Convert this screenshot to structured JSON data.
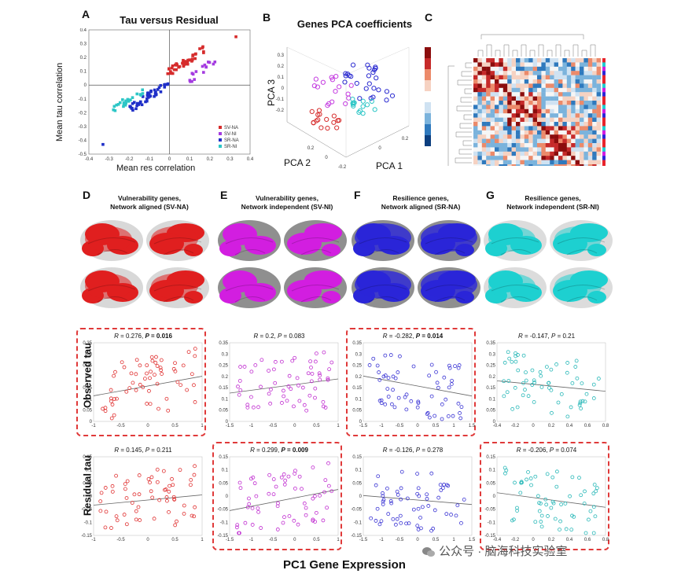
{
  "panelA": {
    "letter": "A",
    "title": "Tau versus Residual",
    "xlabel": "Mean res correlation",
    "ylabel": "Mean tau correlation",
    "xticks": [
      "-0.4",
      "-0.3",
      "-0.2",
      "-0.1",
      "0",
      "0.1",
      "0.2",
      "0.3",
      "0.4"
    ],
    "yticks": [
      "0.4",
      "0.3",
      "0.2",
      "0.1",
      "0",
      "-0.1",
      "-0.2",
      "-0.3",
      "-0.4",
      "-0.5"
    ],
    "legend": [
      {
        "label": "SV-NA",
        "color": "#d62c2c"
      },
      {
        "label": "SV-NI",
        "color": "#a43be0"
      },
      {
        "label": "SR-NA",
        "color": "#1f2fc8"
      },
      {
        "label": "SR-NI",
        "color": "#2cc6c6"
      }
    ]
  },
  "panelB": {
    "letter": "B",
    "title": "Genes PCA coefficients",
    "xlabel": "PCA 1",
    "ylabel": "PCA 2",
    "zlabel": "PCA 3",
    "zticks": [
      "0.3",
      "0.2",
      "0.1",
      "0",
      "-0.1",
      "-0.2"
    ],
    "yticks": [
      "0.2",
      "0",
      "-0.2"
    ],
    "xticks": [
      "0",
      "0.2"
    ]
  },
  "panelC": {
    "letter": "C"
  },
  "brains": [
    {
      "letter": "D",
      "title1": "Vulnerability genes,",
      "title2": "Network aligned (SV-NA)",
      "color": "#e01f1f"
    },
    {
      "letter": "E",
      "title1": "Vulnerability genes,",
      "title2": "Network independent (SV-NI)",
      "color": "#d21ee0"
    },
    {
      "letter": "F",
      "title1": "Resilience genes,",
      "title2": "Network aligned (SR-NA)",
      "color": "#2a26d8"
    },
    {
      "letter": "G",
      "title1": "Resilience genes,",
      "title2": "Network independent (SR-NI)",
      "color": "#1ed0d0"
    }
  ],
  "rows": {
    "observed": "Observed tau",
    "residual": "Residual tau",
    "xlabel": "PC1 Gene Expression"
  },
  "scatter": [
    {
      "R": "0.276",
      "P": "0.016",
      "bold": true,
      "highlight": true,
      "color": "#e03030",
      "xticks": [
        "-1",
        "-0.5",
        "0",
        "0.5",
        "1"
      ],
      "yticks": [
        "0.35",
        "0.3",
        "0.25",
        "0.2",
        "0.15",
        "0.1",
        "0.05",
        "0"
      ]
    },
    {
      "R": "0.2",
      "P": "0.083",
      "bold": false,
      "highlight": false,
      "color": "#c02cd0",
      "xticks": [
        "-1.5",
        "-1",
        "-0.5",
        "0",
        "0.5",
        "1"
      ],
      "yticks": [
        "0.35",
        "0.3",
        "0.25",
        "0.2",
        "0.15",
        "0.1",
        "0.05",
        "0"
      ]
    },
    {
      "R": "-0.282",
      "P": "0.014",
      "bold": true,
      "highlight": true,
      "color": "#3a34d4",
      "xticks": [
        "-1.5",
        "-1",
        "-0.5",
        "0",
        "0.5",
        "1",
        "1.5"
      ],
      "yticks": [
        "0.35",
        "0.3",
        "0.25",
        "0.2",
        "0.15",
        "0.1",
        "0.05",
        "0"
      ]
    },
    {
      "R": "-0.147",
      "P": "0.21",
      "bold": false,
      "highlight": false,
      "color": "#28b8b8",
      "xticks": [
        "-0.4",
        "-0.2",
        "0",
        "0.2",
        "0.4",
        "0.6",
        "0.8"
      ],
      "yticks": [
        "0.35",
        "0.3",
        "0.25",
        "0.2",
        "0.15",
        "0.1",
        "0.05",
        "0"
      ]
    },
    {
      "R": "0.145",
      "P": "0.211",
      "bold": false,
      "highlight": false,
      "color": "#e03030",
      "xticks": [
        "-1",
        "-0.5",
        "0",
        "0.5",
        "1"
      ],
      "yticks": [
        "0.15",
        "0.1",
        "0.05",
        "0",
        "-0.05",
        "-0.1",
        "-0.15"
      ]
    },
    {
      "R": "0.299",
      "P": "0.009",
      "bold": true,
      "highlight": true,
      "color": "#c02cd0",
      "xticks": [
        "-1.5",
        "-1",
        "-0.5",
        "0",
        "0.5",
        "1"
      ],
      "yticks": [
        "0.15",
        "0.1",
        "0.05",
        "0",
        "-0.05",
        "-0.1",
        "-0.15"
      ]
    },
    {
      "R": "-0.126",
      "P": "0.278",
      "bold": false,
      "highlight": false,
      "color": "#3a34d4",
      "xticks": [
        "-1.5",
        "-1",
        "-0.5",
        "0",
        "0.5",
        "1",
        "1.5"
      ],
      "yticks": [
        "0.15",
        "0.1",
        "0.05",
        "0",
        "-0.05",
        "-0.1",
        "-0.15"
      ]
    },
    {
      "R": "-0.206",
      "P": "0.074",
      "bold": false,
      "highlight": true,
      "color": "#28b8b8",
      "xticks": [
        "-0.4",
        "-0.2",
        "0",
        "0.2",
        "0.4",
        "0.6",
        "0.8"
      ],
      "yticks": [
        "0.15",
        "0.1",
        "0.05",
        "0",
        "-0.05",
        "-0.1",
        "-0.15"
      ]
    }
  ],
  "watermark": "公众号 · 脑海科技实验室"
}
